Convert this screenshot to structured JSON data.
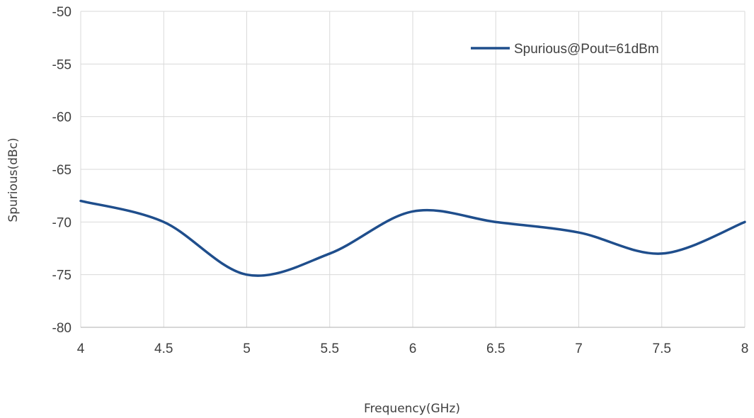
{
  "chart_data": {
    "type": "line",
    "title": "",
    "xlabel": "Frequency(GHz)",
    "ylabel": "Spurious(dBc)",
    "xlim": [
      4,
      8
    ],
    "ylim": [
      -80,
      -50
    ],
    "x_ticks": [
      "4",
      "4.5",
      "5",
      "5.5",
      "6",
      "6.5",
      "7",
      "7.5",
      "8"
    ],
    "y_ticks": [
      "-50",
      "-55",
      "-60",
      "-65",
      "-70",
      "-75",
      "-80"
    ],
    "grid": true,
    "smooth": true,
    "legend_position": "top-right",
    "series": [
      {
        "name": "Spurious@Pout=61dBm",
        "color": "#1f4e8c",
        "x": [
          4,
          4.5,
          5,
          5.5,
          6,
          6.5,
          7,
          7.5,
          8
        ],
        "y": [
          -68,
          -70,
          -75,
          -73,
          -69,
          -70,
          -71,
          -73,
          -70
        ]
      }
    ]
  }
}
